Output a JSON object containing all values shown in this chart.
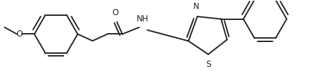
{
  "background_color": "#ffffff",
  "line_color": "#222222",
  "line_width": 1.4,
  "font_size": 8.5,
  "figsize": [
    4.65,
    1.03
  ],
  "dpi": 100,
  "xlim": [
    0,
    465
  ],
  "ylim": [
    0,
    103
  ]
}
